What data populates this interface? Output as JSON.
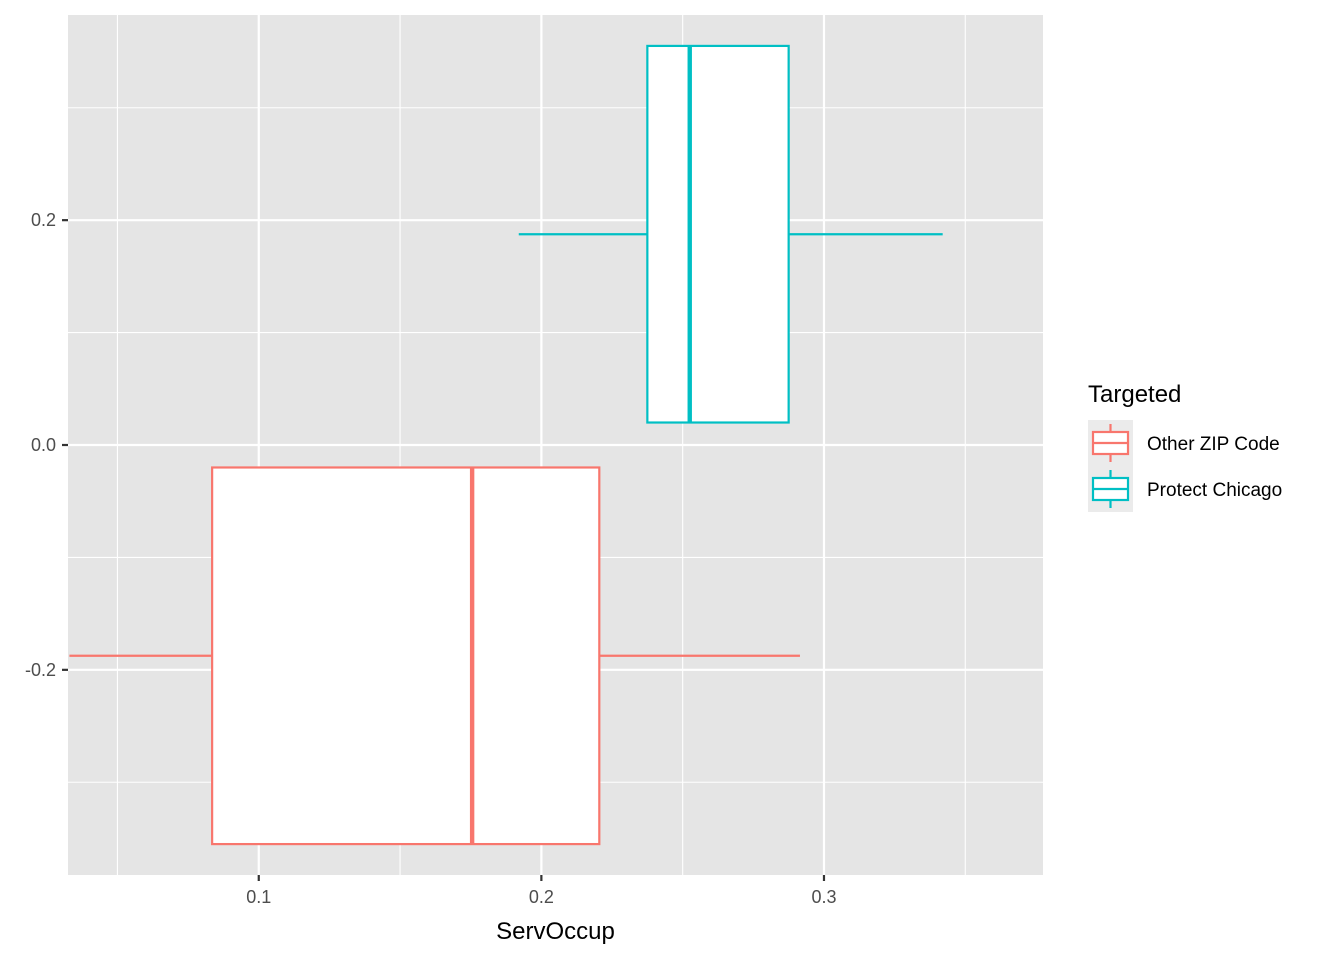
{
  "chart_data": {
    "type": "boxplot",
    "orientation": "horizontal",
    "xlabel": "ServOccup",
    "ylabel": "",
    "xlim": [
      0.0325,
      0.3775
    ],
    "ylim": [
      -0.3825,
      0.3825
    ],
    "x_ticks": [
      0.1,
      0.2,
      0.3
    ],
    "x_tick_labels": [
      "0.1",
      "0.2",
      "0.3"
    ],
    "y_ticks": [
      0.2,
      0.0,
      -0.2
    ],
    "y_tick_labels": [
      "0.2",
      "0.0",
      "-0.2"
    ],
    "grid": true,
    "legend": {
      "title": "Targeted",
      "position": "right"
    },
    "series": [
      {
        "name": "Other ZIP Code",
        "color": "#F8766D",
        "y_range": [
          -0.355,
          -0.02
        ],
        "whisker_low": 0.033,
        "q1": 0.0835,
        "median": 0.1755,
        "q3": 0.2205,
        "whisker_high": 0.2915
      },
      {
        "name": "Protect Chicago",
        "color": "#00BFC4",
        "y_range": [
          0.02,
          0.355
        ],
        "whisker_low": 0.192,
        "q1": 0.2375,
        "median": 0.2525,
        "q3": 0.2875,
        "whisker_high": 0.342
      }
    ]
  },
  "colors": {
    "panel_background": "#E5E5E5",
    "grid_line": "#FFFFFF",
    "legend_key_background": "#EBEBEB"
  }
}
